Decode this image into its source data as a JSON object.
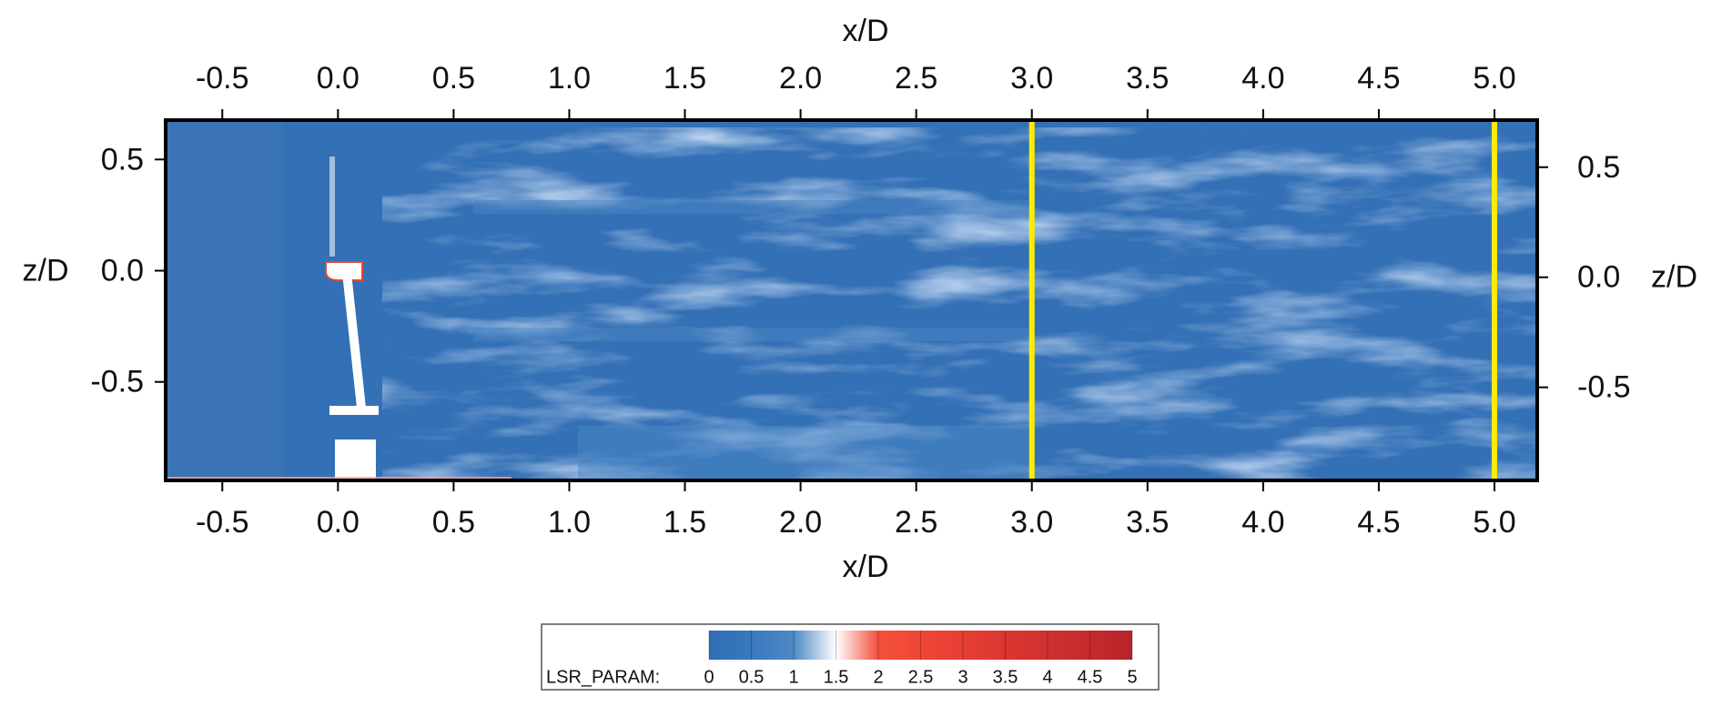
{
  "chart_data": {
    "type": "contour",
    "x_label": "x/D",
    "x2_label": "x/D",
    "y_label": "z/D",
    "y2_label": "z/D",
    "xlim": [
      -0.745,
      5.185
    ],
    "xticks": [
      -0.5,
      {
        "value": 0,
        "label": "0.0"
      },
      0.5,
      {
        "value": 1,
        "label": "1.0"
      },
      1.5,
      {
        "value": 2,
        "label": "2.0"
      },
      2.5,
      {
        "value": 3,
        "label": "3.0"
      },
      3.5,
      {
        "value": 4,
        "label": "4.0"
      },
      4.5,
      {
        "value": 5,
        "label": "5.0"
      }
    ],
    "ylim": [
      -0.943,
      0.677
    ],
    "yticks": [
      0.5,
      {
        "value": 0,
        "label": "0.0"
      },
      -0.5
    ],
    "y2lim": [
      -0.923,
      0.714
    ],
    "y2ticks": [
      0.5,
      {
        "value": 0,
        "label": "0.0"
      },
      -0.5
    ],
    "reference_lines": {
      "x": [
        3,
        5
      ],
      "color": "#ffec00"
    },
    "colorbar": {
      "label": "LSR_PARAM:",
      "lim": [
        0,
        5
      ],
      "ticks": [
        0,
        0.5,
        1,
        1.5,
        2,
        2.5,
        3,
        3.5,
        4,
        4.5,
        5
      ],
      "colors": [
        "#2f6db5",
        "#3a78bd",
        "#4d8ac6",
        "#ffffff",
        "#f4503c",
        "#ee4637",
        "#e53e34",
        "#db3631",
        "#d0302f",
        "#c52a2d",
        "#b8232b"
      ]
    }
  }
}
